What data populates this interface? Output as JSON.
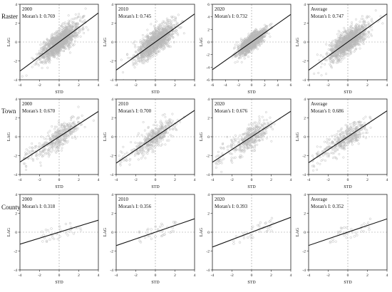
{
  "rows": [
    {
      "label": "Raster"
    },
    {
      "label": "Town"
    },
    {
      "label": "County"
    }
  ],
  "x_axis_label": "STD",
  "y_axis_label": "LAG",
  "chart_data": [
    {
      "type": "scatter",
      "row": "Raster",
      "year": "2000",
      "moran": "Moran's I: 0.769",
      "slope": 0.769,
      "xlim": [
        -4,
        4
      ],
      "ylim": [
        -4,
        4
      ],
      "xticks": [
        -4,
        -2,
        0,
        2,
        4
      ],
      "yticks": [
        -4,
        -2,
        0,
        2,
        4
      ],
      "n_points": 1200,
      "spread": 1.1
    },
    {
      "type": "scatter",
      "row": "Raster",
      "year": "2010",
      "moran": "Moran's I: 0.745",
      "slope": 0.745,
      "xlim": [
        -4,
        4
      ],
      "ylim": [
        -4,
        4
      ],
      "xticks": [
        -4,
        -2,
        0,
        2,
        4
      ],
      "yticks": [
        -4,
        -2,
        0,
        2,
        4
      ],
      "n_points": 1200,
      "spread": 1.1
    },
    {
      "type": "scatter",
      "row": "Raster",
      "year": "2020",
      "moran": "Moran's I: 0.732",
      "slope": 0.732,
      "xlim": [
        -6,
        6
      ],
      "ylim": [
        -6,
        6
      ],
      "xticks": [
        -6,
        -4,
        -2,
        0,
        2,
        4,
        6
      ],
      "yticks": [
        -6,
        -4,
        -2,
        0,
        2,
        4,
        6
      ],
      "n_points": 1200,
      "spread": 1.1
    },
    {
      "type": "scatter",
      "row": "Raster",
      "year": "Average",
      "moran": "Moran's I: 0.747",
      "slope": 0.747,
      "xlim": [
        -4,
        4
      ],
      "ylim": [
        -4,
        4
      ],
      "xticks": [
        -4,
        -2,
        0,
        2,
        4
      ],
      "yticks": [
        -4,
        -2,
        0,
        2,
        4
      ],
      "n_points": 1200,
      "spread": 1.1
    },
    {
      "type": "scatter",
      "row": "Town",
      "year": "2000",
      "moran": "Moran's I: 0.670",
      "slope": 0.67,
      "xlim": [
        -4,
        4
      ],
      "ylim": [
        -4,
        4
      ],
      "xticks": [
        -4,
        -2,
        0,
        2,
        4
      ],
      "yticks": [
        -4,
        -2,
        0,
        2,
        4
      ],
      "n_points": 420,
      "spread": 1.0
    },
    {
      "type": "scatter",
      "row": "Town",
      "year": "2010",
      "moran": "Moran's I: 0.700",
      "slope": 0.7,
      "xlim": [
        -4,
        4
      ],
      "ylim": [
        -4,
        4
      ],
      "xticks": [
        -4,
        -2,
        0,
        2,
        4
      ],
      "yticks": [
        -4,
        -2,
        0,
        2,
        4
      ],
      "n_points": 420,
      "spread": 1.0
    },
    {
      "type": "scatter",
      "row": "Town",
      "year": "2020",
      "moran": "Moran's I: 0.676",
      "slope": 0.676,
      "xlim": [
        -4,
        4
      ],
      "ylim": [
        -4,
        4
      ],
      "xticks": [
        -4,
        -2,
        0,
        2,
        4
      ],
      "yticks": [
        -4,
        -2,
        0,
        2,
        4
      ],
      "n_points": 420,
      "spread": 1.0
    },
    {
      "type": "scatter",
      "row": "Town",
      "year": "Average",
      "moran": "Moran's I: 0.686",
      "slope": 0.686,
      "xlim": [
        -4,
        4
      ],
      "ylim": [
        -4,
        4
      ],
      "xticks": [
        -4,
        -2,
        0,
        2,
        4
      ],
      "yticks": [
        -4,
        -2,
        0,
        2,
        4
      ],
      "n_points": 420,
      "spread": 1.0
    },
    {
      "type": "scatter",
      "row": "County",
      "year": "2000",
      "moran": "Moran's I: 0.318",
      "slope": 0.318,
      "xlim": [
        -4,
        4
      ],
      "ylim": [
        -4,
        4
      ],
      "xticks": [
        -4,
        -2,
        0,
        2,
        4
      ],
      "yticks": [
        -4,
        -2,
        0,
        2,
        4
      ],
      "n_points": 36,
      "spread": 0.55
    },
    {
      "type": "scatter",
      "row": "County",
      "year": "2010",
      "moran": "Moran's I: 0.356",
      "slope": 0.356,
      "xlim": [
        -4,
        4
      ],
      "ylim": [
        -4,
        4
      ],
      "xticks": [
        -4,
        -2,
        0,
        2,
        4
      ],
      "yticks": [
        -4,
        -2,
        0,
        2,
        4
      ],
      "n_points": 36,
      "spread": 0.55
    },
    {
      "type": "scatter",
      "row": "County",
      "year": "2020",
      "moran": "Moran's I: 0.393",
      "slope": 0.393,
      "xlim": [
        -4,
        4
      ],
      "ylim": [
        -4,
        4
      ],
      "xticks": [
        -4,
        -2,
        0,
        2,
        4
      ],
      "yticks": [
        -4,
        -2,
        0,
        2,
        4
      ],
      "n_points": 36,
      "spread": 0.55
    },
    {
      "type": "scatter",
      "row": "County",
      "year": "Average",
      "moran": "Moran's I: 0.352",
      "slope": 0.352,
      "xlim": [
        -4,
        4
      ],
      "ylim": [
        -4,
        4
      ],
      "xticks": [
        -4,
        -2,
        0,
        2,
        4
      ],
      "yticks": [
        -4,
        -2,
        0,
        2,
        4
      ],
      "n_points": 36,
      "spread": 0.55
    }
  ],
  "colors": {
    "points": "#b8b8b8",
    "line": "#111111",
    "zero_lines": "#9a9a9a",
    "axis": "#222222",
    "text": "#111111"
  }
}
